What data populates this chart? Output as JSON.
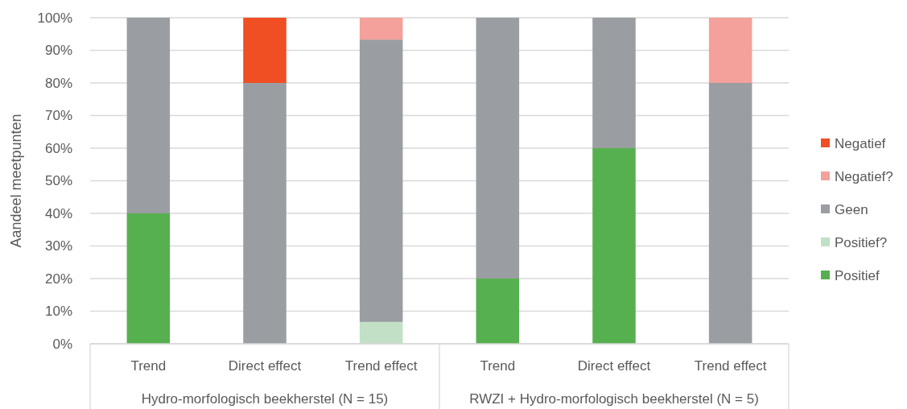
{
  "chart_data": {
    "type": "bar",
    "stacked": true,
    "ylabel": "Aandeel meetpunten",
    "categories": [
      "Trend",
      "Direct effect",
      "Trend effect",
      "Trend",
      "Direct effect",
      "Trend effect"
    ],
    "series": [
      {
        "name": "Positief",
        "color": "#57b04f",
        "values": [
          40,
          0,
          0,
          20,
          60,
          0
        ]
      },
      {
        "name": "Positief?",
        "color": "#c2e0c6",
        "values": [
          0,
          0,
          6.7,
          0,
          0,
          0
        ]
      },
      {
        "name": "Geen",
        "color": "#9a9ea2",
        "values": [
          60,
          80,
          86.6,
          80,
          40,
          80
        ]
      },
      {
        "name": "Negatief?",
        "color": "#f4a09b",
        "values": [
          0,
          0,
          6.7,
          0,
          0,
          20
        ]
      },
      {
        "name": "Negatief",
        "color": "#f04e23",
        "values": [
          0,
          20,
          0,
          0,
          0,
          0
        ]
      }
    ],
    "ylim": [
      0,
      100
    ],
    "yticks": [
      {
        "value": 0,
        "label": "0%"
      },
      {
        "value": 10,
        "label": "10%"
      },
      {
        "value": 20,
        "label": "20%"
      },
      {
        "value": 30,
        "label": "30%"
      },
      {
        "value": 40,
        "label": "40%"
      },
      {
        "value": 50,
        "label": "50%"
      },
      {
        "value": 60,
        "label": "60%"
      },
      {
        "value": 70,
        "label": "70%"
      },
      {
        "value": 80,
        "label": "80%"
      },
      {
        "value": 90,
        "label": "90%"
      },
      {
        "value": 100,
        "label": "100%"
      }
    ],
    "grid": "y",
    "legend": "right",
    "annotations": [
      "Hydro-morfologisch beekherstel (N = 15)",
      "RWZI + Hydro-morfologisch beekherstel (N = 5)"
    ]
  }
}
